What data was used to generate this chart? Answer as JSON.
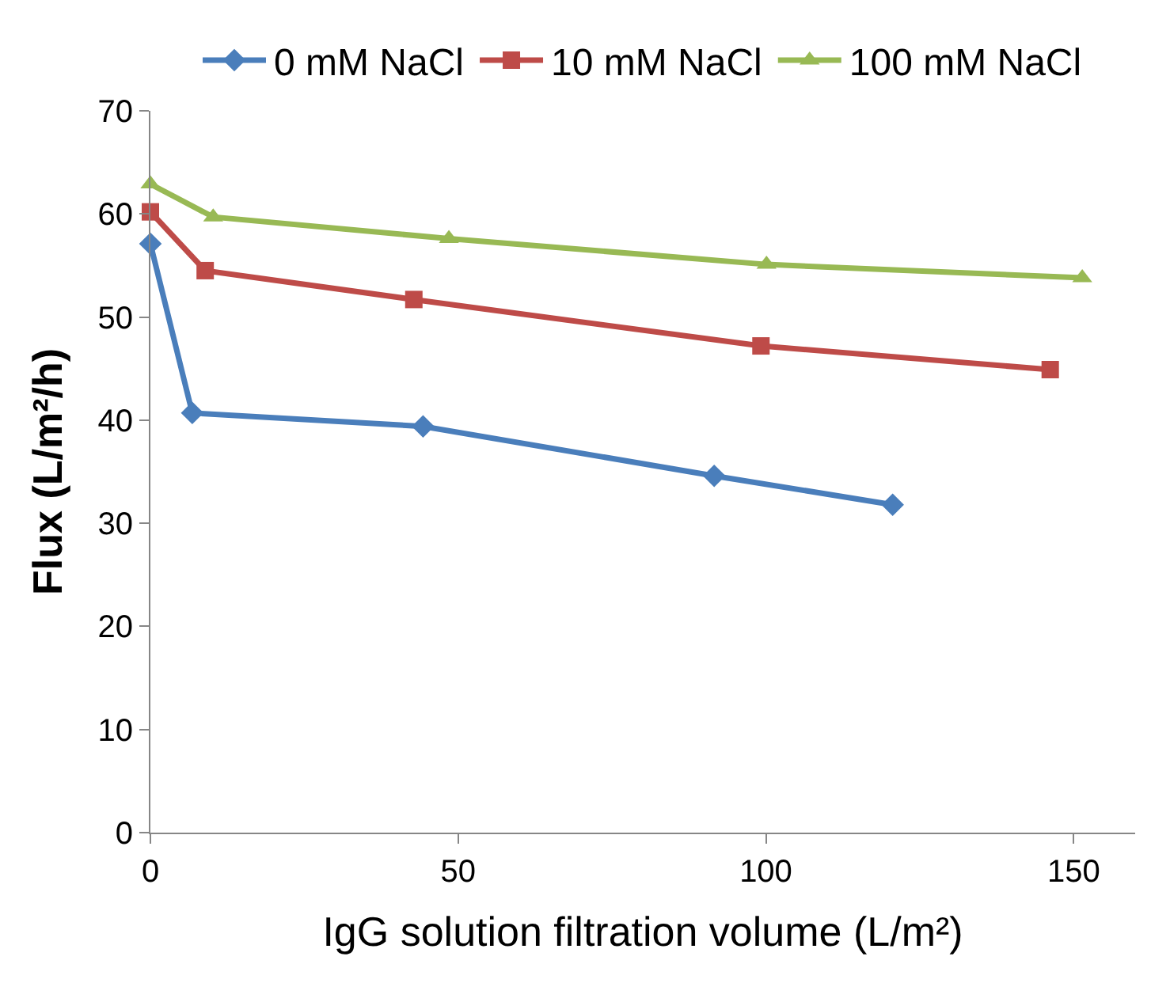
{
  "chart_data": {
    "type": "line",
    "xlabel": "IgG solution filtration volume (L/m²)",
    "ylabel": "Flux (L/m²/h)",
    "xlim": [
      0,
      160
    ],
    "xticks": [
      0,
      50,
      100,
      150
    ],
    "ylim": [
      0,
      70
    ],
    "yticks": [
      0,
      10,
      20,
      30,
      40,
      50,
      60,
      70
    ],
    "grid": false,
    "legend": "top",
    "line_style": "solid",
    "series": [
      {
        "name": "0 mM NaCl",
        "color": "#4a7ebb",
        "marker": "diamond",
        "x": [
          0,
          6.8,
          44.3,
          91.6,
          120.6
        ],
        "values": [
          57.1,
          40.7,
          39.4,
          34.6,
          31.8
        ]
      },
      {
        "name": "10 mM NaCl",
        "color": "#be4b48",
        "marker": "square",
        "x": [
          0,
          8.9,
          42.8,
          99.2,
          146.2
        ],
        "values": [
          60.2,
          54.5,
          51.7,
          47.2,
          44.9
        ]
      },
      {
        "name": "100 mM NaCl",
        "color": "#98b954",
        "marker": "triangle",
        "x": [
          0,
          10.2,
          48.5,
          100.1,
          151.4
        ],
        "values": [
          62.9,
          59.7,
          57.6,
          55.1,
          53.8
        ]
      }
    ]
  }
}
